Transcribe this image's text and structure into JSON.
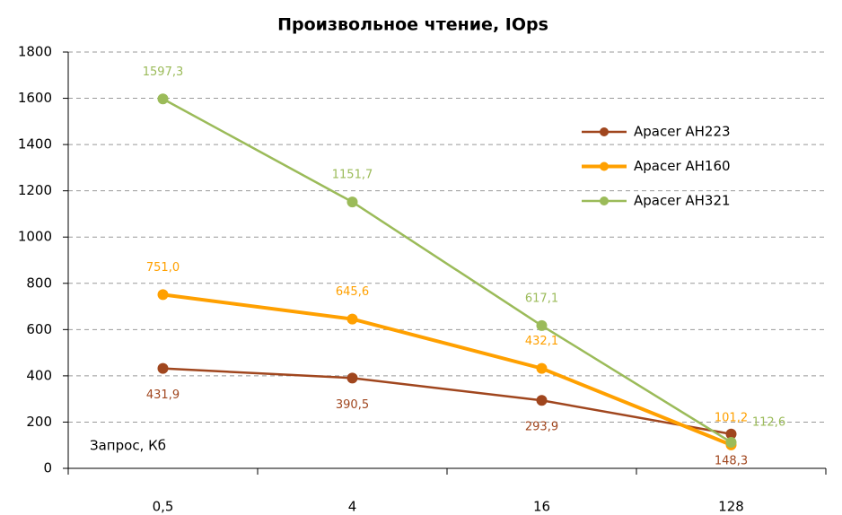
{
  "chart_data": {
    "type": "line",
    "title": "Произвольное чтение, IOps",
    "x_label": "Запрос, Кб",
    "categories": [
      "0,5",
      "4",
      "16",
      "128"
    ],
    "series": [
      {
        "name": "Apacer AH223",
        "color": "#a0461e",
        "values": [
          431.9,
          390.5,
          293.9,
          148.3
        ],
        "value_labels": [
          "431,9",
          "390,5",
          "293,9",
          "148,3"
        ]
      },
      {
        "name": "Apacer AH160",
        "color": "#ffa000",
        "values": [
          751.0,
          645.6,
          432.1,
          101.2
        ],
        "value_labels": [
          "751,0",
          "645,6",
          "432,1",
          "101,2"
        ]
      },
      {
        "name": "Apacer AH321",
        "color": "#9bbb59",
        "values": [
          1597.3,
          1151.7,
          617.1,
          112.6
        ],
        "value_labels": [
          "1597,3",
          "1151,7",
          "617,1",
          "112,6"
        ]
      }
    ],
    "ylim": [
      0,
      1800
    ],
    "yticks": [
      0,
      200,
      400,
      600,
      800,
      1000,
      1200,
      1400,
      1600,
      1800
    ],
    "grid": true,
    "legend": "top-right"
  }
}
